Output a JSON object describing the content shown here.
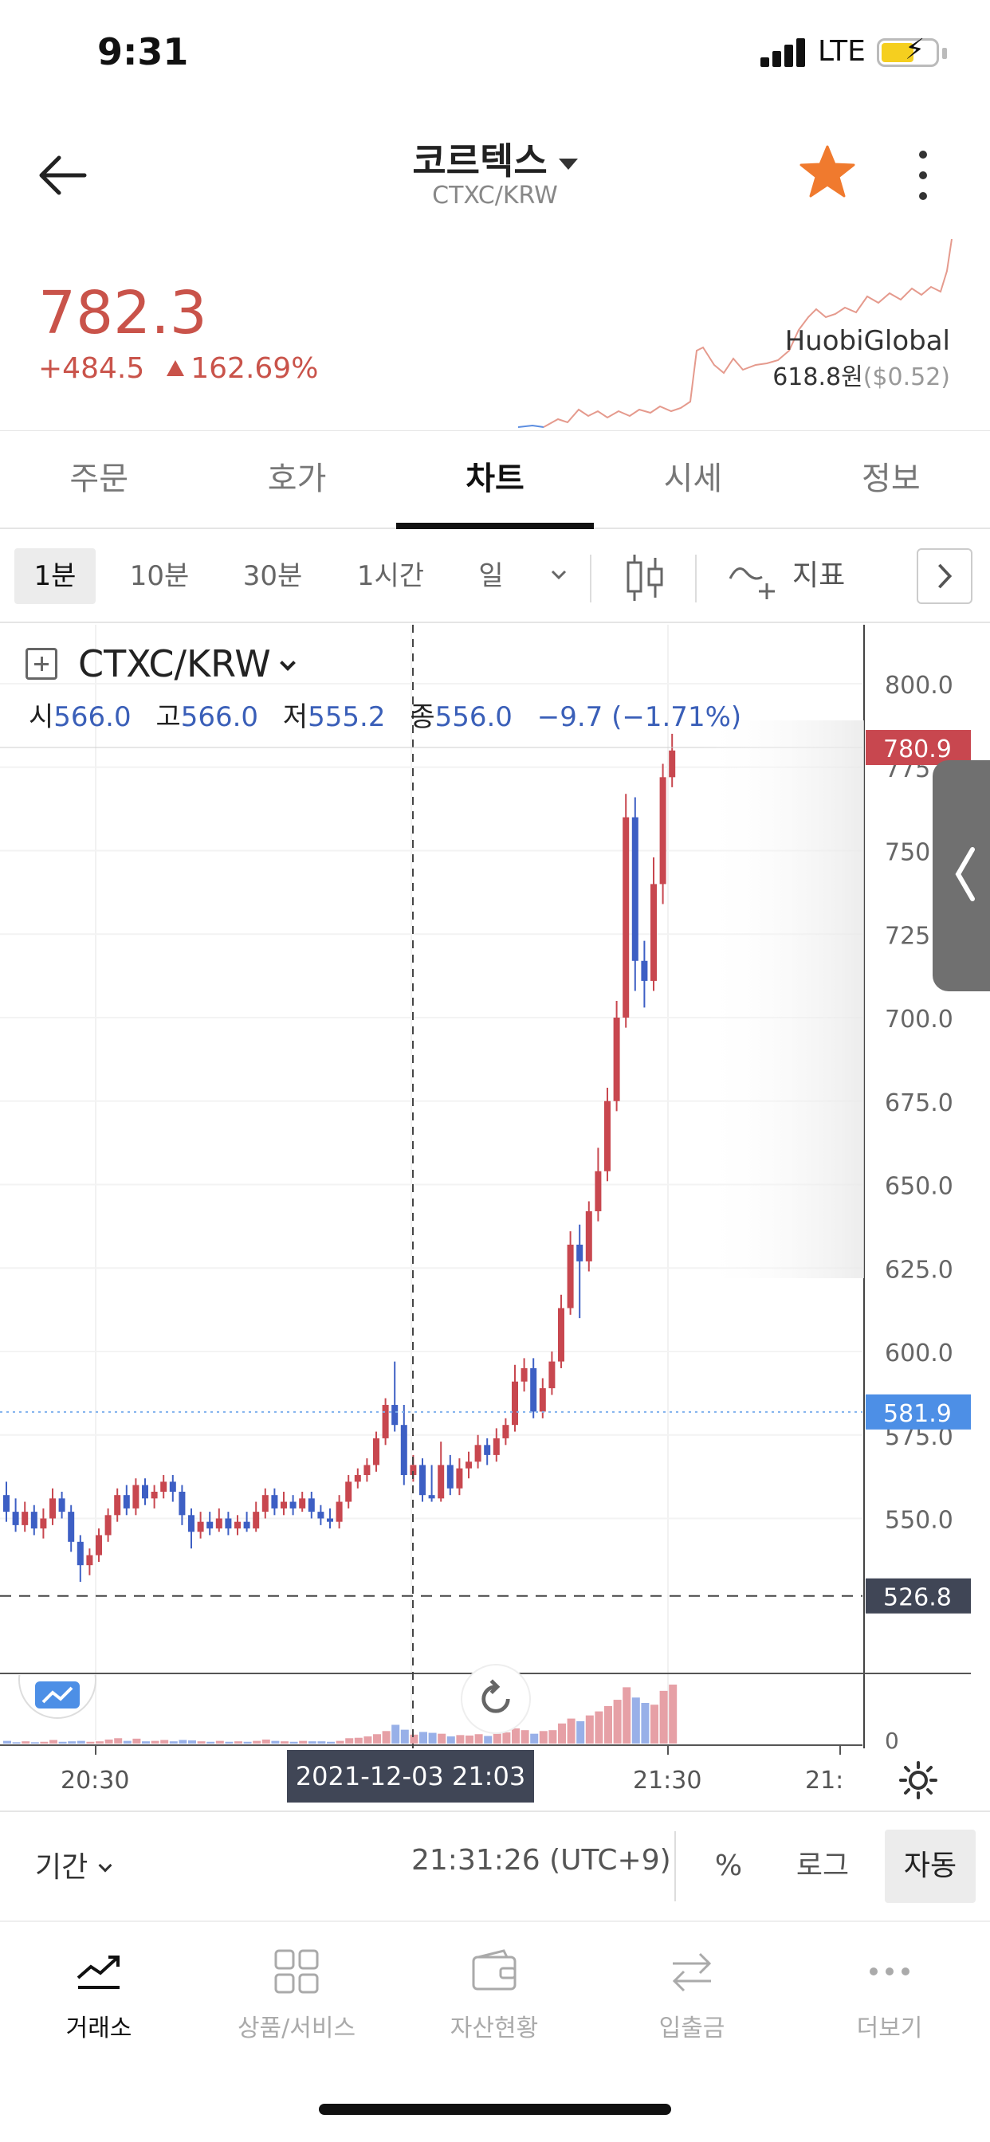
{
  "status": {
    "time": "9:31",
    "network": "LTE"
  },
  "header": {
    "coin_name": "코르텍스",
    "pair": "CTXC/KRW"
  },
  "price": {
    "current": "782.3",
    "change": "+484.5",
    "change_pct": "162.69%",
    "exchange_name": "HuobiGlobal",
    "exchange_price": "618.8원",
    "exchange_price_usd": "($0.52)"
  },
  "tabs": [
    "주문",
    "호가",
    "차트",
    "시세",
    "정보"
  ],
  "active_tab": "차트",
  "toolbar": {
    "timeframes": [
      "1분",
      "10분",
      "30분",
      "1시간",
      "일"
    ],
    "active_timeframe": "1분",
    "indicator_label": "지표"
  },
  "chart": {
    "symbol": "CTXC/KRW",
    "ohlc": {
      "open_label": "시",
      "open": "566.0",
      "high_label": "고",
      "high": "566.0",
      "low_label": "저",
      "low": "555.2",
      "close_label": "종",
      "close": "556.0",
      "change": "−9.7 (−1.71%)"
    },
    "crosshair_label": "2021-12-03    21:03",
    "colors": {
      "up": "#c8474f",
      "down": "#3d5fc4",
      "current_tag": "#c8474f",
      "cross_tag": "#4d8fe6",
      "ref_tag": "#404656"
    }
  },
  "chart_data": {
    "type": "candlestick",
    "y_ticks": [
      "800.0",
      "775.0",
      "750.0",
      "725.0",
      "700.0",
      "675.0",
      "650.0",
      "625.0",
      "600.0",
      "575.0",
      "550.0"
    ],
    "ylim": [
      526.8,
      805.0
    ],
    "x_ticks": [
      "20:30",
      "21:30",
      "21:"
    ],
    "price_tags": {
      "current": "780.9",
      "crosshair": "581.9",
      "reference": "526.8"
    },
    "volume_zero_label": "0",
    "candles": [
      [
        557,
        552,
        561,
        549
      ],
      [
        552,
        548,
        556,
        546
      ],
      [
        548,
        552,
        555,
        546
      ],
      [
        552,
        547,
        554,
        545
      ],
      [
        547,
        550,
        553,
        544
      ],
      [
        550,
        556,
        559,
        548
      ],
      [
        556,
        552,
        558,
        550
      ],
      [
        552,
        543,
        554,
        540
      ],
      [
        543,
        536,
        545,
        531
      ],
      [
        536,
        539,
        541,
        533
      ],
      [
        539,
        545,
        547,
        537
      ],
      [
        545,
        551,
        553,
        543
      ],
      [
        551,
        557,
        559,
        549
      ],
      [
        557,
        553,
        560,
        551
      ],
      [
        553,
        560,
        562,
        551
      ],
      [
        560,
        556,
        562,
        554
      ],
      [
        556,
        558,
        560,
        553
      ],
      [
        558,
        561,
        563,
        556
      ],
      [
        561,
        558,
        563,
        555
      ],
      [
        558,
        551,
        560,
        548
      ],
      [
        551,
        546,
        553,
        541
      ],
      [
        546,
        549,
        552,
        544
      ],
      [
        549,
        547,
        552,
        545
      ],
      [
        547,
        550,
        553,
        546
      ],
      [
        550,
        547,
        552,
        545
      ],
      [
        547,
        549,
        551,
        545
      ],
      [
        549,
        547,
        552,
        546
      ],
      [
        547,
        552,
        555,
        546
      ],
      [
        552,
        557,
        559,
        550
      ],
      [
        557,
        553,
        559,
        551
      ],
      [
        553,
        555,
        558,
        551
      ],
      [
        555,
        553,
        557,
        551
      ],
      [
        553,
        556,
        558,
        552
      ],
      [
        556,
        552,
        558,
        550
      ],
      [
        552,
        550,
        554,
        548
      ],
      [
        550,
        549,
        553,
        547
      ],
      [
        549,
        555,
        557,
        547
      ],
      [
        555,
        561,
        563,
        553
      ],
      [
        561,
        563,
        565,
        559
      ],
      [
        563,
        566,
        568,
        561
      ],
      [
        566,
        574,
        576,
        564
      ],
      [
        574,
        584,
        586,
        572
      ],
      [
        584,
        578,
        597,
        576
      ],
      [
        578,
        563,
        584,
        560
      ],
      [
        563,
        566,
        569,
        561
      ],
      [
        566,
        557,
        568,
        555
      ],
      [
        557,
        556,
        566,
        555
      ],
      [
        556,
        566,
        573,
        555
      ],
      [
        566,
        559,
        569,
        557
      ],
      [
        559,
        565,
        568,
        557
      ],
      [
        565,
        567,
        570,
        562
      ],
      [
        567,
        572,
        575,
        565
      ],
      [
        572,
        569,
        574,
        566
      ],
      [
        569,
        574,
        577,
        567
      ],
      [
        574,
        578,
        580,
        572
      ],
      [
        578,
        591,
        596,
        576
      ],
      [
        591,
        595,
        598,
        588
      ],
      [
        595,
        582,
        598,
        580
      ],
      [
        582,
        589,
        592,
        580
      ],
      [
        589,
        597,
        600,
        587
      ],
      [
        597,
        613,
        617,
        595
      ],
      [
        613,
        632,
        636,
        611
      ],
      [
        632,
        627,
        638,
        610
      ],
      [
        627,
        642,
        645,
        624
      ],
      [
        642,
        654,
        661,
        639
      ],
      [
        654,
        675,
        679,
        651
      ],
      [
        675,
        700,
        705,
        672
      ],
      [
        700,
        760,
        767,
        697
      ],
      [
        760,
        717,
        766,
        708
      ],
      [
        717,
        711,
        723,
        703
      ],
      [
        711,
        740,
        748,
        708
      ],
      [
        740,
        772,
        776,
        734
      ],
      [
        772,
        780,
        785,
        769
      ]
    ],
    "volumes": [
      0.6,
      0.3,
      0.5,
      0.3,
      0.4,
      0.8,
      0.4,
      0.5,
      0.6,
      0.4,
      0.5,
      0.9,
      1.2,
      0.6,
      1.1,
      0.5,
      0.6,
      0.8,
      0.5,
      0.8,
      0.7,
      0.5,
      0.4,
      0.6,
      0.4,
      0.5,
      0.4,
      0.6,
      0.9,
      0.6,
      0.5,
      0.4,
      0.6,
      0.5,
      0.5,
      0.4,
      0.6,
      1.2,
      1.3,
      1.6,
      2.1,
      2.8,
      4.2,
      3.1,
      2.0,
      2.6,
      2.4,
      2.2,
      1.6,
      1.9,
      1.8,
      2.1,
      1.7,
      2.2,
      2.5,
      3.4,
      3.0,
      2.2,
      2.8,
      3.0,
      4.5,
      5.6,
      5.0,
      6.3,
      7.2,
      8.4,
      9.8,
      12.6,
      10.3,
      9.1,
      8.7,
      11.8,
      13.2
    ]
  },
  "period_bar": {
    "label": "기간",
    "clock": "21:31:26 (UTC+9)",
    "buttons": [
      "%",
      "로그",
      "자동"
    ],
    "active": "자동"
  },
  "bottom_nav": {
    "items": [
      "거래소",
      "상품/서비스",
      "자산현황",
      "입출금",
      "더보기"
    ],
    "active": "거래소"
  }
}
